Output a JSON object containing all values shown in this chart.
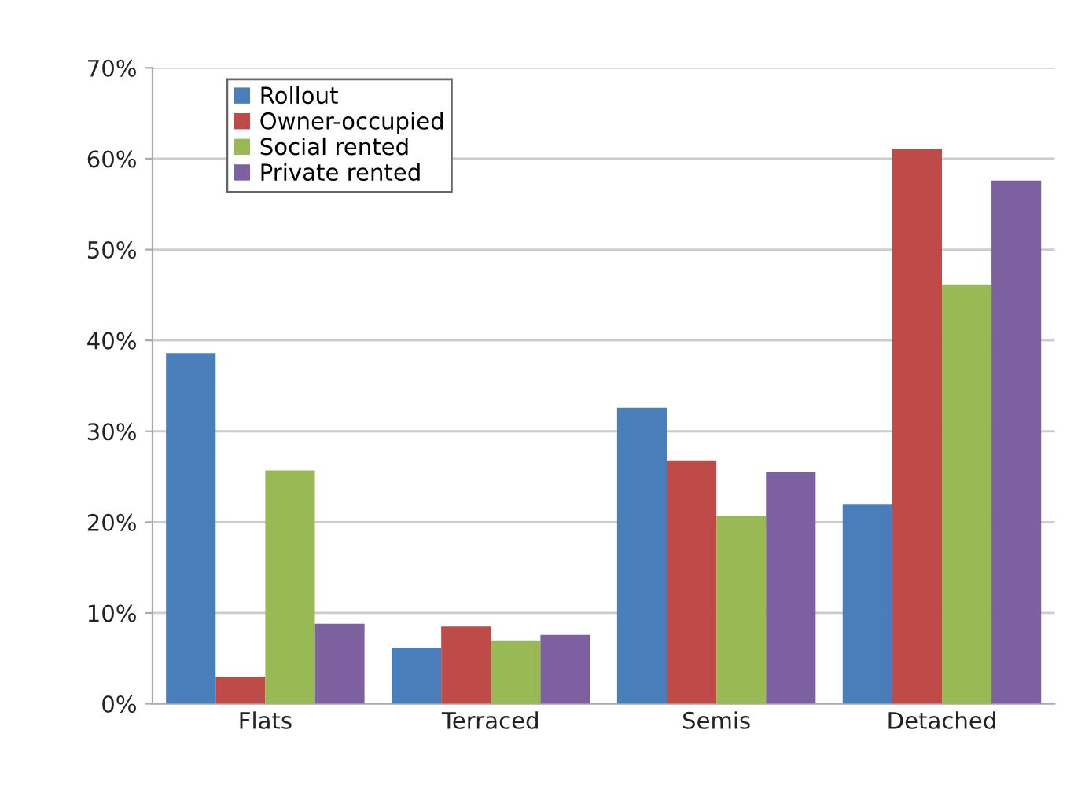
{
  "chart_data": {
    "type": "bar",
    "categories": [
      "Flats",
      "Terraced",
      "Semis",
      "Detached"
    ],
    "series": [
      {
        "name": "Rollout",
        "color": "#4a7ebb",
        "values": [
          38.6,
          6.2,
          32.6,
          22.0
        ]
      },
      {
        "name": "Owner-occupied",
        "color": "#be4b48",
        "values": [
          3.0,
          8.5,
          26.8,
          61.1
        ]
      },
      {
        "name": "Social rented",
        "color": "#98b954",
        "values": [
          25.7,
          6.9,
          20.7,
          46.1
        ]
      },
      {
        "name": "Private rented",
        "color": "#7d60a0",
        "values": [
          8.8,
          7.6,
          25.5,
          57.6
        ]
      }
    ],
    "ylim": [
      0,
      70
    ],
    "yticks": [
      {
        "value": 0,
        "label": "0%"
      },
      {
        "value": 10,
        "label": "10%"
      },
      {
        "value": 20,
        "label": "20%"
      },
      {
        "value": 30,
        "label": "30%"
      },
      {
        "value": 40,
        "label": "40%"
      },
      {
        "value": 50,
        "label": "50%"
      },
      {
        "value": 60,
        "label": "60%"
      },
      {
        "value": 70,
        "label": "70%"
      }
    ],
    "grid": "y",
    "legend": "top left"
  }
}
